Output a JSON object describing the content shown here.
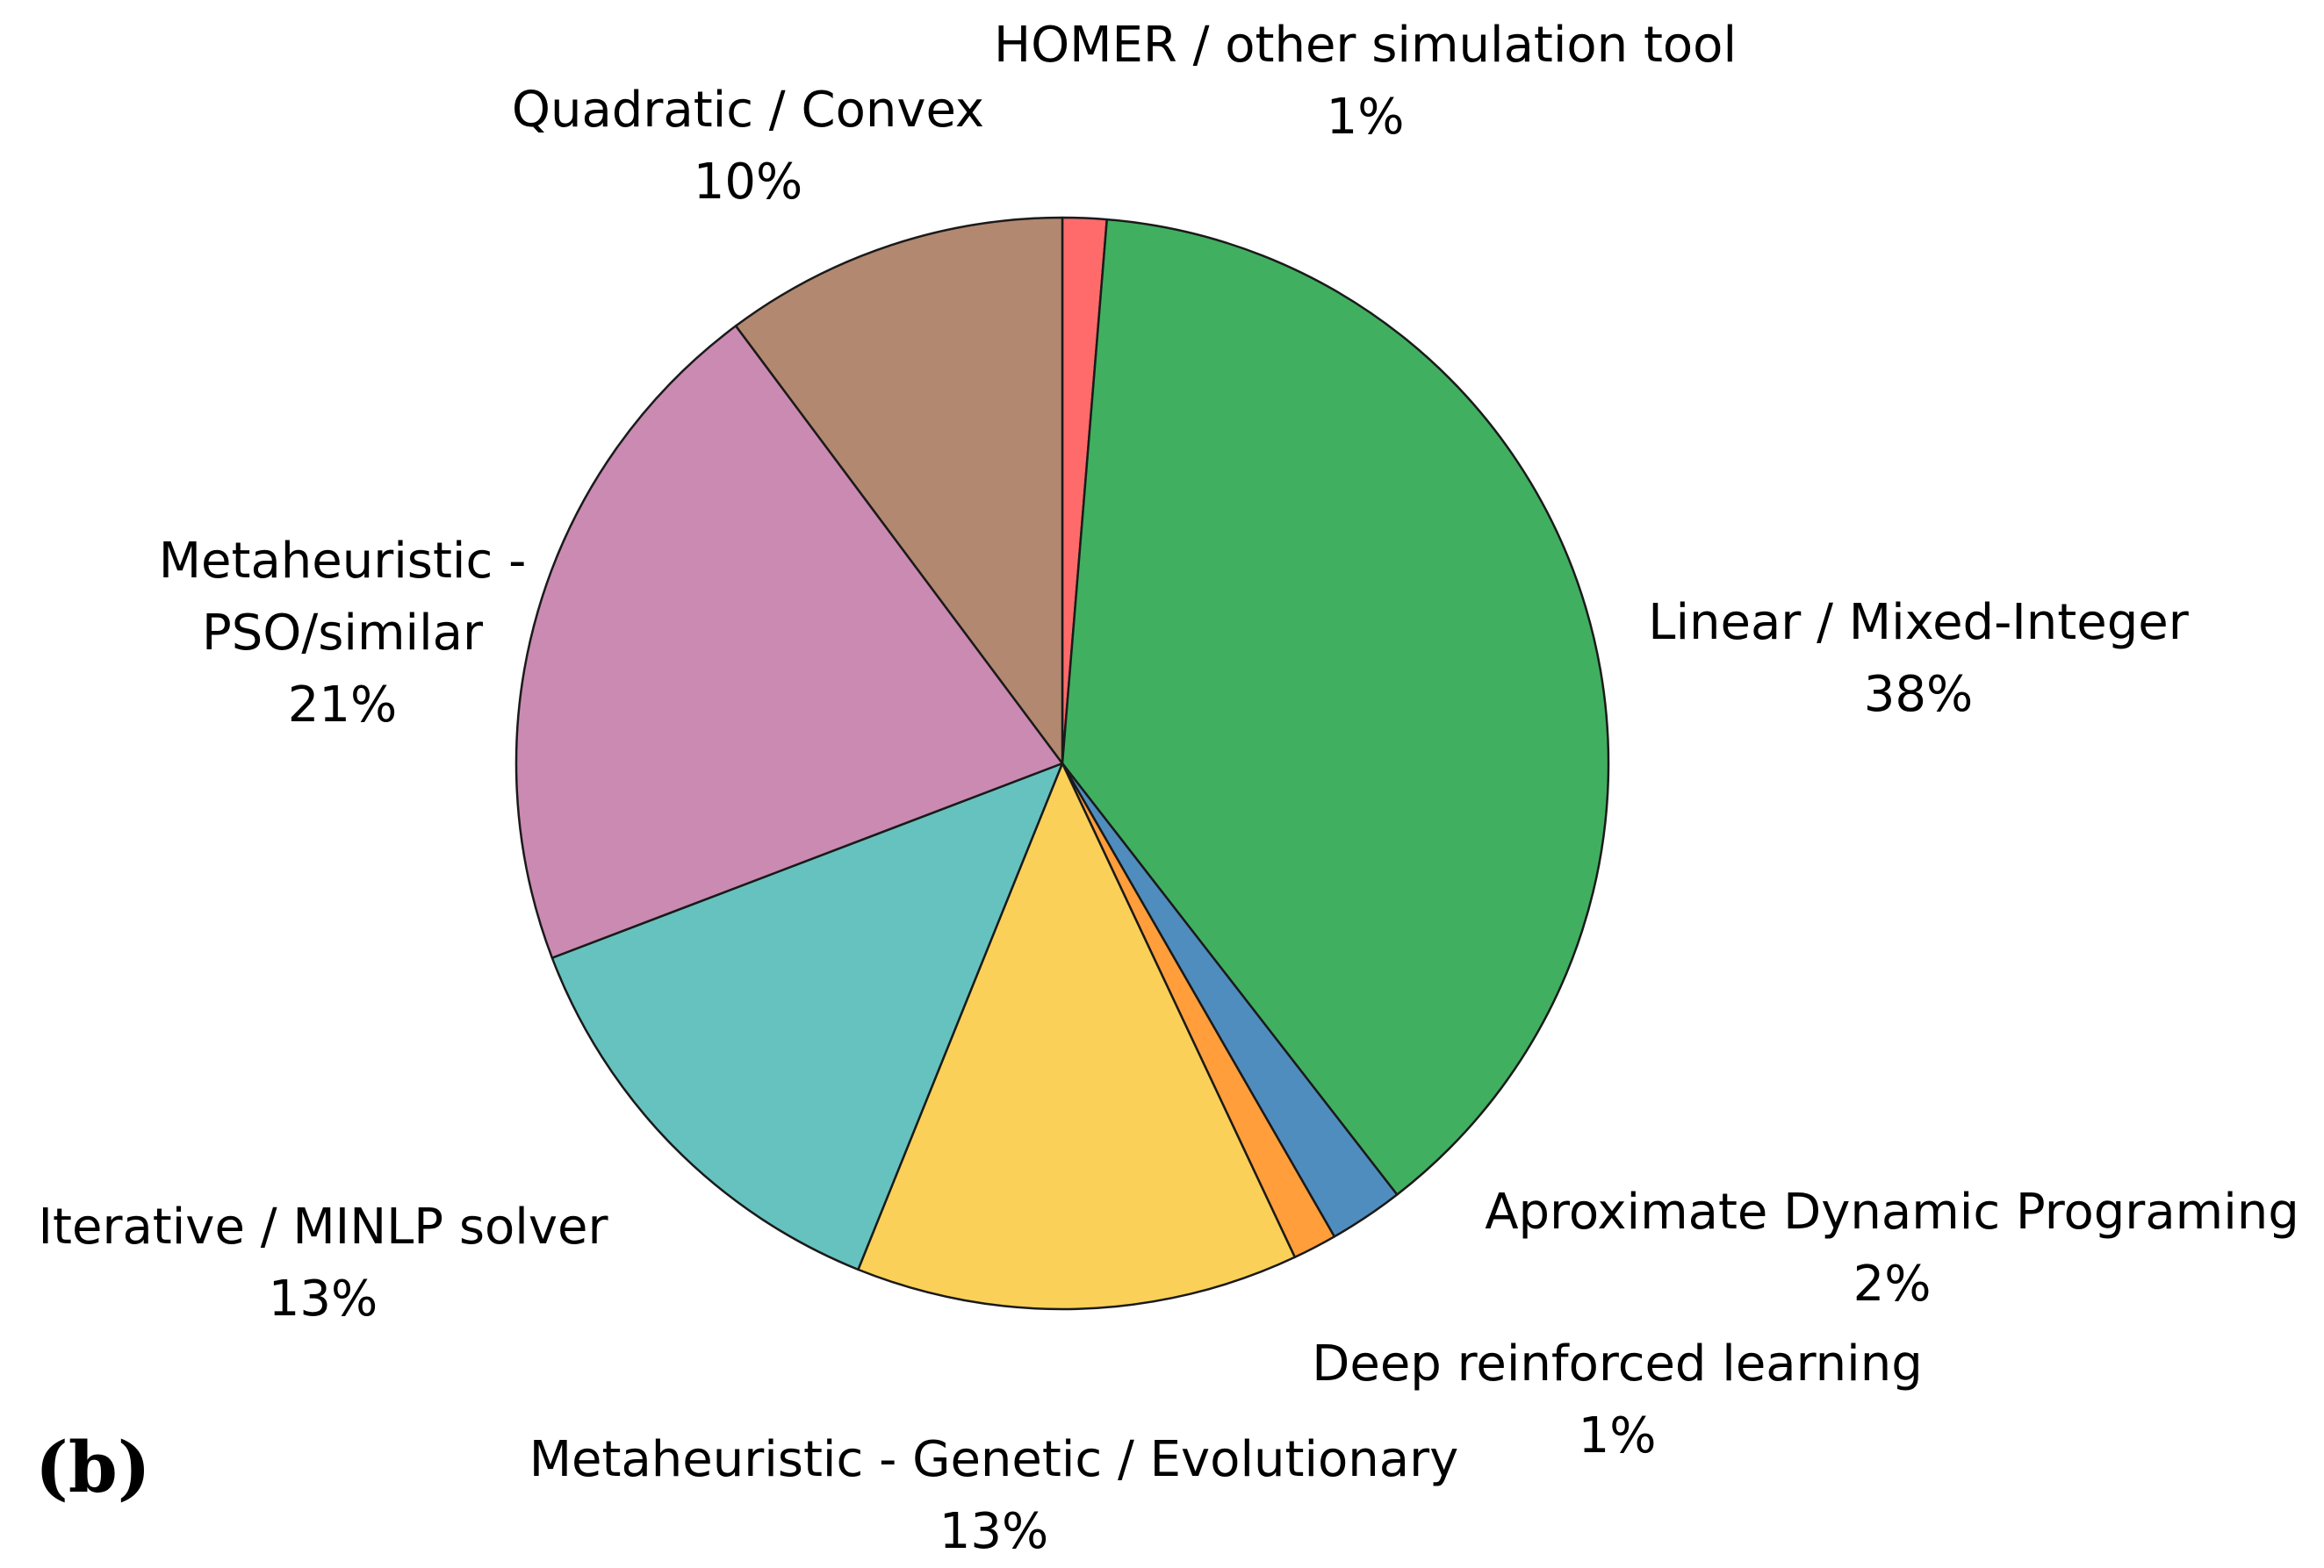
{
  "figure": {
    "panel_label": "(b)"
  },
  "chart_data": {
    "type": "pie",
    "start_angle_deg": 0,
    "direction": "clockwise",
    "slices": [
      {
        "label_lines": [
          "HOMER / other simulation tool"
        ],
        "percent_label": "1%",
        "value": 1.3,
        "color": "#FF6B6B"
      },
      {
        "label_lines": [
          "Linear / Mixed-Integer"
        ],
        "percent_label": "38%",
        "value": 38.2,
        "color": "#41AF60"
      },
      {
        "label_lines": [
          "Aproximate Dynamic Programing"
        ],
        "percent_label": "2%",
        "value": 2.2,
        "color": "#4F8DBE"
      },
      {
        "label_lines": [
          "Deep reinforced learning"
        ],
        "percent_label": "1%",
        "value": 1.3,
        "color": "#FF9E3A"
      },
      {
        "label_lines": [
          "Metaheuristic - Genetic / Evolutionary"
        ],
        "percent_label": "13%",
        "value": 13.1,
        "color": "#FAD058"
      },
      {
        "label_lines": [
          "Iterative / MINLP solver"
        ],
        "percent_label": "13%",
        "value": 13.1,
        "color": "#66C2BE"
      },
      {
        "label_lines": [
          "Metaheuristic -",
          "PSO/similar"
        ],
        "percent_label": "21%",
        "value": 20.6,
        "color": "#CA8AB1"
      },
      {
        "label_lines": [
          "Quadratic / Convex"
        ],
        "percent_label": "10%",
        "value": 10.2,
        "color": "#B38870"
      }
    ]
  }
}
